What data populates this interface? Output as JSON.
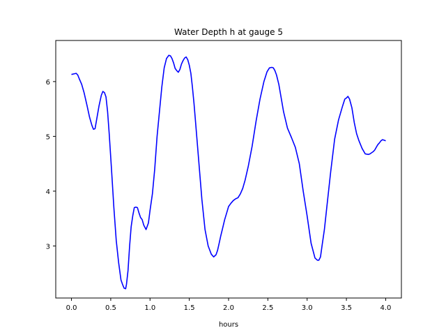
{
  "chart_data": {
    "type": "line",
    "title": "Water Depth h at gauge 5",
    "xlabel": "hours",
    "ylabel": "",
    "xlim": [
      -0.2,
      4.2
    ],
    "ylim": [
      2.05,
      6.75
    ],
    "xticks": [
      0.0,
      0.5,
      1.0,
      1.5,
      2.0,
      2.5,
      3.0,
      3.5,
      4.0
    ],
    "xtick_labels": [
      "0.0",
      "0.5",
      "1.0",
      "1.5",
      "2.0",
      "2.5",
      "3.0",
      "3.5",
      "4.0"
    ],
    "yticks": [
      3,
      4,
      5,
      6
    ],
    "ytick_labels": [
      "3",
      "4",
      "5",
      "6"
    ],
    "grid": false,
    "series": [
      {
        "color": "#0000ff",
        "x": [
          0.0,
          0.03,
          0.06,
          0.08,
          0.1,
          0.13,
          0.16,
          0.2,
          0.23,
          0.26,
          0.28,
          0.3,
          0.32,
          0.35,
          0.38,
          0.4,
          0.42,
          0.44,
          0.46,
          0.48,
          0.51,
          0.54,
          0.57,
          0.6,
          0.63,
          0.65,
          0.67,
          0.69,
          0.7,
          0.72,
          0.74,
          0.76,
          0.78,
          0.8,
          0.82,
          0.84,
          0.86,
          0.88,
          0.9,
          0.92,
          0.95,
          0.98,
          1.0,
          1.03,
          1.06,
          1.09,
          1.12,
          1.15,
          1.18,
          1.21,
          1.24,
          1.26,
          1.28,
          1.3,
          1.32,
          1.34,
          1.36,
          1.38,
          1.4,
          1.42,
          1.44,
          1.46,
          1.48,
          1.5,
          1.52,
          1.54,
          1.56,
          1.58,
          1.62,
          1.66,
          1.7,
          1.74,
          1.78,
          1.81,
          1.84,
          1.86,
          1.88,
          1.9,
          1.92,
          1.95,
          1.98,
          2.0,
          2.03,
          2.06,
          2.09,
          2.12,
          2.15,
          2.18,
          2.21,
          2.25,
          2.3,
          2.35,
          2.4,
          2.45,
          2.49,
          2.52,
          2.55,
          2.57,
          2.59,
          2.61,
          2.64,
          2.67,
          2.7,
          2.75,
          2.8,
          2.85,
          2.9,
          2.95,
          3.0,
          3.05,
          3.1,
          3.13,
          3.15,
          3.17,
          3.19,
          3.22,
          3.25,
          3.3,
          3.35,
          3.4,
          3.45,
          3.48,
          3.5,
          3.52,
          3.54,
          3.57,
          3.6,
          3.63,
          3.66,
          3.7,
          3.74,
          3.78,
          3.8,
          3.82,
          3.84,
          3.86,
          3.88,
          3.9,
          3.92,
          3.94,
          3.96,
          3.98,
          4.0
        ],
        "y": [
          6.13,
          6.14,
          6.15,
          6.12,
          6.05,
          5.95,
          5.8,
          5.55,
          5.35,
          5.2,
          5.13,
          5.14,
          5.3,
          5.55,
          5.75,
          5.82,
          5.8,
          5.72,
          5.45,
          5.05,
          4.4,
          3.7,
          3.1,
          2.7,
          2.38,
          2.3,
          2.23,
          2.22,
          2.3,
          2.55,
          3.0,
          3.35,
          3.55,
          3.7,
          3.71,
          3.7,
          3.6,
          3.52,
          3.48,
          3.38,
          3.3,
          3.42,
          3.65,
          3.95,
          4.4,
          5.0,
          5.45,
          5.9,
          6.25,
          6.42,
          6.48,
          6.47,
          6.42,
          6.34,
          6.24,
          6.2,
          6.17,
          6.22,
          6.32,
          6.38,
          6.43,
          6.45,
          6.4,
          6.3,
          6.15,
          5.9,
          5.6,
          5.25,
          4.55,
          3.85,
          3.3,
          3.0,
          2.85,
          2.8,
          2.84,
          2.92,
          3.05,
          3.18,
          3.3,
          3.48,
          3.62,
          3.72,
          3.78,
          3.83,
          3.86,
          3.88,
          3.95,
          4.05,
          4.2,
          4.45,
          4.82,
          5.28,
          5.68,
          6.0,
          6.18,
          6.25,
          6.26,
          6.25,
          6.2,
          6.12,
          5.95,
          5.7,
          5.45,
          5.15,
          4.98,
          4.8,
          4.5,
          4.0,
          3.55,
          3.05,
          2.78,
          2.74,
          2.74,
          2.8,
          3.0,
          3.3,
          3.7,
          4.35,
          4.95,
          5.3,
          5.55,
          5.68,
          5.7,
          5.73,
          5.68,
          5.52,
          5.25,
          5.05,
          4.92,
          4.78,
          4.68,
          4.67,
          4.68,
          4.7,
          4.72,
          4.75,
          4.8,
          4.85,
          4.88,
          4.92,
          4.94,
          4.93,
          4.92
        ]
      }
    ]
  }
}
